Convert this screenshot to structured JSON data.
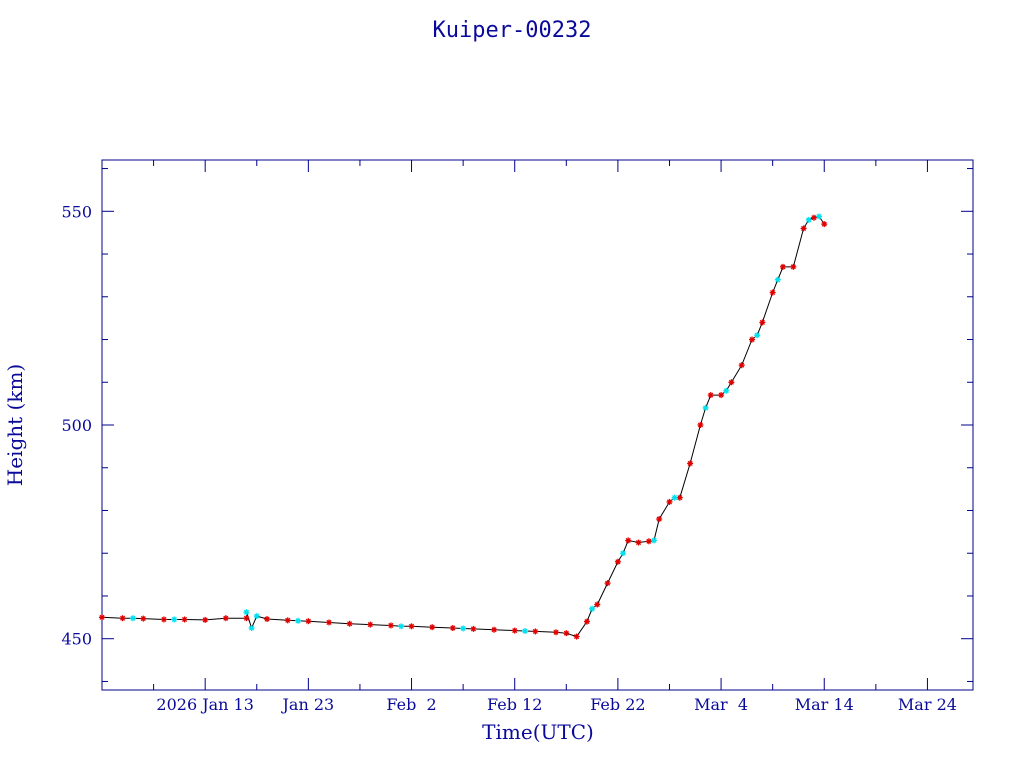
{
  "chart_data": {
    "type": "scatter",
    "title": "Kuiper-00232",
    "xlabel": "Time(UTC)",
    "ylabel": "Height (km)",
    "x_axis_type": "date",
    "xlim": [
      "2026-01-03",
      "2026-03-28T10:00"
    ],
    "ylim": [
      438,
      562
    ],
    "y_ticks": [
      450,
      500,
      550
    ],
    "x_ticks": [
      {
        "date": "2026-01-13",
        "label": "2026 Jan 13"
      },
      {
        "date": "2026-01-23",
        "label": "Jan 23"
      },
      {
        "date": "2026-02-02",
        "label": "Feb  2"
      },
      {
        "date": "2026-02-12",
        "label": "Feb 12"
      },
      {
        "date": "2026-02-22",
        "label": "Feb 22"
      },
      {
        "date": "2026-03-04",
        "label": "Mar  4"
      },
      {
        "date": "2026-03-14",
        "label": "Mar 14"
      },
      {
        "date": "2026-03-24",
        "label": "Mar 24"
      }
    ],
    "grid": false,
    "legend": "none",
    "colors": {
      "axis": "#00008b",
      "line": "#000000",
      "series_red": "#e00000",
      "series_cyan": "#00e0f0"
    },
    "series": [
      {
        "marker": "asterisk",
        "color": "#e00000",
        "points": [
          [
            "2026-01-03",
            455.0
          ],
          [
            "2026-01-05",
            454.8
          ],
          [
            "2026-01-07",
            454.7
          ],
          [
            "2026-01-09",
            454.5
          ],
          [
            "2026-01-11",
            454.5
          ],
          [
            "2026-01-13",
            454.4
          ],
          [
            "2026-01-15",
            454.8
          ],
          [
            "2026-01-17",
            454.8
          ],
          [
            "2026-01-19",
            454.6
          ],
          [
            "2026-01-21",
            454.3
          ],
          [
            "2026-01-23",
            454.1
          ],
          [
            "2026-01-25",
            453.8
          ],
          [
            "2026-01-27",
            453.5
          ],
          [
            "2026-01-29",
            453.3
          ],
          [
            "2026-01-31",
            453.1
          ],
          [
            "2026-02-02",
            452.9
          ],
          [
            "2026-02-04",
            452.7
          ],
          [
            "2026-02-06",
            452.5
          ],
          [
            "2026-02-08",
            452.3
          ],
          [
            "2026-02-10",
            452.1
          ],
          [
            "2026-02-12",
            451.9
          ],
          [
            "2026-02-14",
            451.7
          ],
          [
            "2026-02-16",
            451.5
          ],
          [
            "2026-02-17",
            451.3
          ],
          [
            "2026-02-18",
            450.5
          ],
          [
            "2026-02-19",
            454.0
          ],
          [
            "2026-02-20",
            458.0
          ],
          [
            "2026-02-21",
            463.0
          ],
          [
            "2026-02-22",
            468.0
          ],
          [
            "2026-02-23",
            473.0
          ],
          [
            "2026-02-24",
            472.5
          ],
          [
            "2026-02-25",
            472.8
          ],
          [
            "2026-02-26",
            478.0
          ],
          [
            "2026-02-27",
            482.0
          ],
          [
            "2026-02-28",
            483.0
          ],
          [
            "2026-03-01",
            491.0
          ],
          [
            "2026-03-02",
            500.0
          ],
          [
            "2026-03-03",
            507.0
          ],
          [
            "2026-03-04",
            507.0
          ],
          [
            "2026-03-05",
            510.0
          ],
          [
            "2026-03-06",
            514.0
          ],
          [
            "2026-03-07",
            520.0
          ],
          [
            "2026-03-08",
            524.0
          ],
          [
            "2026-03-09",
            531.0
          ],
          [
            "2026-03-10",
            537.0
          ],
          [
            "2026-03-11",
            537.0
          ],
          [
            "2026-03-12",
            546.0
          ],
          [
            "2026-03-13",
            548.5
          ],
          [
            "2026-03-14",
            547.0
          ]
        ]
      },
      {
        "marker": "asterisk",
        "color": "#00e0f0",
        "points": [
          [
            "2026-01-06",
            454.8
          ],
          [
            "2026-01-10",
            454.5
          ],
          [
            "2026-01-17",
            456.2
          ],
          [
            "2026-01-17T12:00",
            452.5
          ],
          [
            "2026-01-18",
            455.3
          ],
          [
            "2026-01-22",
            454.2
          ],
          [
            "2026-02-01",
            452.9
          ],
          [
            "2026-02-07",
            452.4
          ],
          [
            "2026-02-13",
            451.8
          ],
          [
            "2026-02-19T12:00",
            457.0
          ],
          [
            "2026-02-22T12:00",
            470.0
          ],
          [
            "2026-02-25T12:00",
            473.0
          ],
          [
            "2026-02-27T12:00",
            483.0
          ],
          [
            "2026-03-02T12:00",
            504.0
          ],
          [
            "2026-03-04T12:00",
            508.0
          ],
          [
            "2026-03-07T12:00",
            521.0
          ],
          [
            "2026-03-09T12:00",
            534.0
          ],
          [
            "2026-03-12T12:00",
            548.0
          ],
          [
            "2026-03-13T12:00",
            548.8
          ]
        ]
      }
    ]
  }
}
